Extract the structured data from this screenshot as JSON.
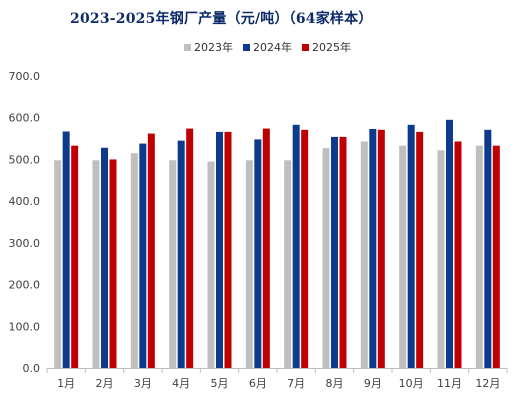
{
  "chart_data": {
    "type": "bar",
    "title": "2023-2025年钢厂产量（元/吨）（64家样本）",
    "categories": [
      "1月",
      "2月",
      "3月",
      "4月",
      "5月",
      "6月",
      "7月",
      "8月",
      "9月",
      "10月",
      "11月",
      "12月"
    ],
    "series": [
      {
        "name": "2023年",
        "color": "#bfbfbf",
        "values": [
          498,
          498,
          515,
          498,
          495,
          498,
          498,
          527,
          543,
          533,
          522,
          533
        ]
      },
      {
        "name": "2024年",
        "color": "#0d3a8c",
        "values": [
          567,
          528,
          538,
          545,
          566,
          548,
          583,
          554,
          573,
          583,
          595,
          571
        ]
      },
      {
        "name": "2025年",
        "color": "#c00000",
        "values": [
          533,
          500,
          562,
          574,
          566,
          574,
          571,
          554,
          571,
          566,
          543,
          533
        ]
      }
    ],
    "ylim": [
      0,
      700
    ],
    "yticks": [
      "0.0",
      "100.0",
      "200.0",
      "300.0",
      "400.0",
      "500.0",
      "600.0",
      "700.0"
    ],
    "legend_position": "top-center",
    "grid": false,
    "xlabel": "",
    "ylabel": ""
  }
}
